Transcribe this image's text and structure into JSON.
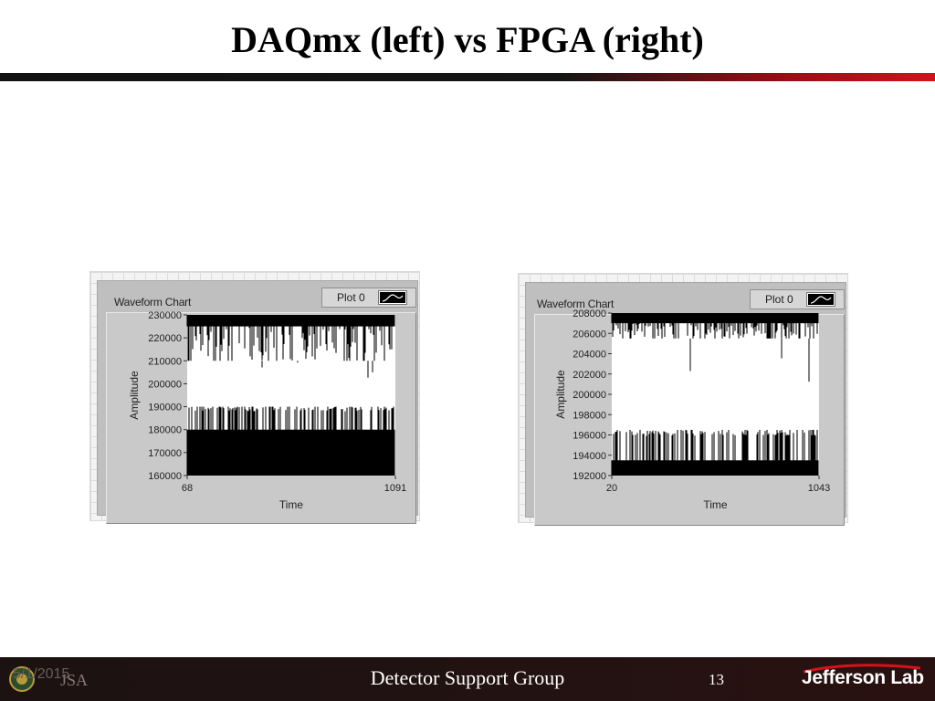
{
  "slide": {
    "title": "DAQmx (left) vs FPGA (right)",
    "footer_date": "5/1/2015",
    "footer_center": "Detector Support Group",
    "page_number": "13",
    "footer_lab": "Jefferson Lab",
    "footer_logo_text": "JSA"
  },
  "colors": {
    "title_rule_dark": "#111111",
    "title_rule_accent": "#d5121c",
    "footer_background": "#1c1212",
    "chart_frame": "#bfbfbf",
    "plot_background": "#ffffff",
    "plot_trace": "#000000"
  },
  "chart_data": [
    {
      "type": "line",
      "title": "Waveform Chart",
      "legend": {
        "label": "Plot 0",
        "placement": "top-right"
      },
      "xlabel": "Time",
      "ylabel": "Amplitude",
      "xlim": [
        68,
        1091
      ],
      "ylim": [
        160000,
        230000
      ],
      "x_tick_labels": [
        "68",
        "1091"
      ],
      "y_tick_labels": [
        "230000",
        "220000",
        "210000",
        "200000",
        "190000",
        "180000",
        "170000",
        "160000"
      ],
      "series": [
        {
          "values_summary": "Dense noise alternating between two bands",
          "upper_band": [
            210000,
            230000
          ],
          "lower_band": [
            160000,
            190000
          ],
          "low_band_floor": 160000,
          "typical_high": 225000,
          "typical_low": 180000
        }
      ],
      "grid": false
    },
    {
      "type": "line",
      "title": "Waveform Chart",
      "legend": {
        "label": "Plot 0",
        "placement": "top-right"
      },
      "xlabel": "Time",
      "ylabel": "Amplitude",
      "xlim": [
        20,
        1043
      ],
      "ylim": [
        192000,
        208000
      ],
      "x_tick_labels": [
        "20",
        "1043"
      ],
      "y_tick_labels": [
        "208000",
        "206000",
        "204000",
        "202000",
        "200000",
        "198000",
        "196000",
        "194000",
        "192000"
      ],
      "series": [
        {
          "values_summary": "Dense noise alternating between two bands",
          "upper_band": [
            205500,
            208000
          ],
          "lower_band": [
            192000,
            196500
          ],
          "typical_high": 207000,
          "typical_low": 193500
        }
      ],
      "grid": false
    }
  ]
}
